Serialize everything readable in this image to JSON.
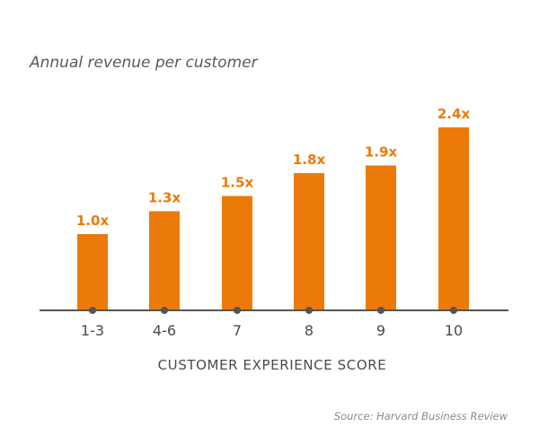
{
  "chart_data": {
    "type": "bar",
    "title": "Annual revenue per customer",
    "xlabel": "CUSTOMER EXPERIENCE SCORE",
    "ylabel": "",
    "categories": [
      "1-3",
      "4-6",
      "7",
      "8",
      "9",
      "10"
    ],
    "values": [
      1.0,
      1.3,
      1.5,
      1.8,
      1.9,
      2.4
    ],
    "data_labels": [
      "1.0x",
      "1.3x",
      "1.5x",
      "1.8x",
      "1.9x",
      "2.4x"
    ],
    "ylim": [
      0,
      2.4
    ],
    "grid": false,
    "legend": "none",
    "source": "Source: Harvard Business Review",
    "colors": {
      "bar": "#ec7a08",
      "label": "#ec7a08",
      "axis": "#555555",
      "tick_dot": "#555555"
    }
  }
}
